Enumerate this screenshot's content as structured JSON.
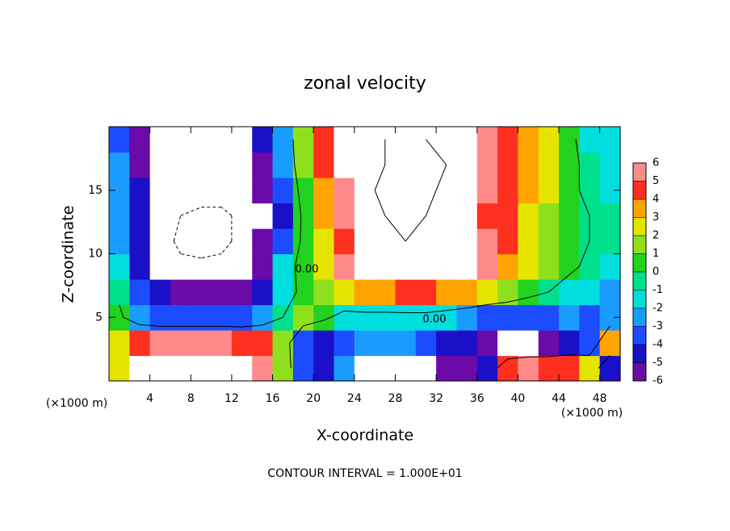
{
  "chart_data": {
    "type": "contour",
    "title": "zonal velocity",
    "xlabel": "X-coordinate",
    "ylabel": "Z-coordinate",
    "x_unit_labels": [
      "(×1000 m)",
      "(×1000 m)"
    ],
    "footnote": "CONTOUR INTERVAL = 1.000E+01",
    "xlim": [
      0,
      50
    ],
    "ylim": [
      0,
      20
    ],
    "xticks": [
      4,
      8,
      12,
      16,
      20,
      24,
      28,
      32,
      36,
      40,
      44,
      48
    ],
    "yticks": [
      5,
      10,
      15
    ],
    "x": [
      1,
      3,
      5,
      7,
      9,
      11,
      13,
      15,
      17,
      19,
      21,
      23,
      25,
      27,
      29,
      31,
      33,
      35,
      37,
      39,
      41,
      43,
      45,
      47,
      49
    ],
    "y": [
      1,
      3,
      5,
      7,
      9,
      11,
      13,
      15,
      17,
      19
    ],
    "z": [
      [
        3,
        7,
        8,
        9,
        9,
        9,
        8,
        5.5,
        2,
        -3,
        -4,
        -2,
        -8,
        -9,
        -10,
        -8,
        -6,
        -5,
        -4,
        4.5,
        5.5,
        5,
        5,
        3,
        -4
      ],
      [
        3,
        5,
        5.5,
        5.5,
        5.5,
        5.5,
        5,
        4.5,
        1.5,
        -3,
        -4,
        -3,
        -2,
        -2,
        -2,
        -3,
        -4,
        -4.5,
        -6,
        -8,
        -7,
        -6,
        -4.5,
        -3,
        4
      ],
      [
        0.5,
        -2,
        -3,
        -3,
        -3,
        -3,
        -3,
        -2,
        0,
        1.5,
        0.5,
        -1,
        -1,
        -1,
        -1,
        -1,
        -1.5,
        -2,
        -3,
        -3,
        -3.5,
        -3,
        -2,
        -3.5,
        -2
      ],
      [
        -0.5,
        -3,
        -4.5,
        -5,
        -5,
        -5,
        -5,
        -4,
        -1,
        0.5,
        2,
        3,
        4,
        4,
        4.5,
        4.5,
        4,
        3.5,
        3,
        2,
        1,
        0,
        -1,
        -1.5,
        -2
      ],
      [
        -1.5,
        -4,
        -7,
        -9,
        -9,
        -9,
        -8,
        -5,
        -1.5,
        1,
        2.5,
        6,
        7,
        7,
        7.5,
        7,
        7,
        6.5,
        5.5,
        4,
        2.5,
        1.5,
        0.5,
        -0.5,
        -1
      ],
      [
        -2,
        -4.5,
        -8,
        -11,
        -12,
        -11,
        -9,
        -6,
        -3,
        0.5,
        3,
        5,
        7,
        9,
        10,
        9,
        8,
        7,
        6,
        5,
        3,
        2,
        1,
        0,
        -0.5
      ],
      [
        -2,
        -4.5,
        -8,
        -10,
        -11,
        -11,
        -9,
        -7,
        -4,
        0.5,
        3.5,
        5.5,
        7,
        10,
        11,
        10,
        8,
        6.5,
        5,
        4.5,
        3,
        2,
        1,
        0,
        -0.5
      ],
      [
        -2,
        -4.5,
        -8,
        -8,
        -8,
        -8,
        -8,
        -6,
        -3,
        1,
        4,
        6,
        9,
        11,
        12,
        11,
        9,
        7,
        5.5,
        5,
        3.5,
        2.5,
        0.5,
        -0.5,
        -1
      ],
      [
        -2.5,
        -5,
        -8,
        -8,
        -8,
        -8,
        -8,
        -5,
        -2,
        1.5,
        4.5,
        7,
        9,
        10,
        11,
        11,
        10,
        8,
        6,
        5,
        3.5,
        2.5,
        0.5,
        -0.5,
        -1
      ],
      [
        -3,
        -5.5,
        -8,
        -8,
        -8,
        -8,
        -8,
        -4,
        -2,
        2,
        4.5,
        8,
        9,
        10,
        11,
        10,
        9,
        8,
        6,
        5,
        3.5,
        2.5,
        0.5,
        -1,
        -1.5
      ]
    ],
    "levels": [
      -6,
      -5,
      -4,
      -3,
      -2,
      -1,
      0,
      1,
      2,
      3,
      4,
      5,
      6
    ],
    "colors": [
      "#6a0aa8",
      "#1a10c8",
      "#1c4cff",
      "#1a9cff",
      "#00dede",
      "#00e08c",
      "#22d21e",
      "#8ee01c",
      "#e4e400",
      "#ffa400",
      "#ff3020",
      "#ff8a8a"
    ],
    "contour_levels": [
      -10,
      0,
      10
    ],
    "contour_labels": [
      "0.00",
      "0.00"
    ]
  }
}
